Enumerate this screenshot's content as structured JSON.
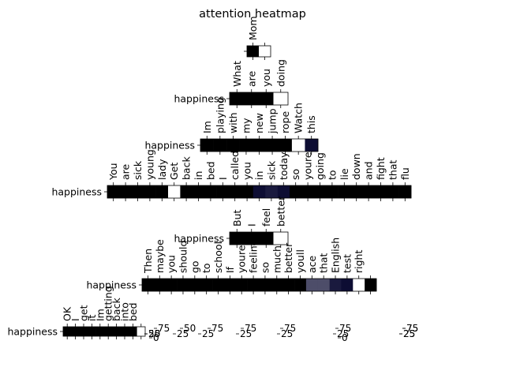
{
  "chart_data": {
    "type": "heatmap",
    "title": "attention heatmap",
    "colormap": {
      "low": "#000000",
      "high": "#ffffff"
    },
    "rows": [
      {
        "label": "",
        "tokens": [
          "Mom",
          ""
        ],
        "values": [
          0.0,
          1.0
        ]
      },
      {
        "label": "happiness",
        "tokens": [
          "What",
          "are",
          "you",
          "doing"
        ],
        "values": [
          0.0,
          0.0,
          0.0,
          1.0
        ]
      },
      {
        "label": "happiness",
        "tokens": [
          "Im",
          "playing",
          "with",
          "my",
          "new",
          "jump",
          "rope",
          "Watch",
          "this"
        ],
        "values": [
          0.0,
          0.0,
          0.0,
          0.0,
          0.0,
          0.0,
          0.0,
          1.0,
          0.05
        ]
      },
      {
        "label": "happiness",
        "tokens": [
          "You",
          "are",
          "sick",
          "young",
          "lady",
          "Get",
          "back",
          "in",
          "bed",
          "I",
          "called",
          "you",
          "in",
          "sick",
          "today",
          "so",
          "youre",
          "going",
          "to",
          "lie",
          "down",
          "and",
          "fight",
          "that",
          "flu"
        ],
        "values": [
          0.0,
          0.0,
          0.0,
          0.0,
          0.0,
          1.0,
          0.0,
          0.0,
          0.0,
          0.0,
          0.0,
          0.0,
          0.05,
          0.1,
          0.05,
          0.0,
          0.0,
          0.0,
          0.0,
          0.0,
          0.0,
          0.0,
          0.0,
          0.0,
          0.0
        ]
      },
      {
        "label": "happiness",
        "tokens": [
          "But",
          "I",
          "feel",
          "better"
        ],
        "values": [
          0.0,
          0.0,
          0.0,
          1.0
        ]
      },
      {
        "label": "happiness",
        "tokens": [
          "Then",
          "maybe",
          "you",
          "should",
          "go",
          "to",
          "school",
          "If",
          "youre",
          "feeling",
          "so",
          "much",
          "better",
          "youll",
          "ace",
          "that",
          "English",
          "test",
          "right",
          ""
        ],
        "values": [
          0.0,
          0.0,
          0.0,
          0.0,
          0.0,
          0.0,
          0.0,
          0.0,
          0.0,
          0.0,
          0.0,
          0.0,
          0.0,
          0.0,
          0.3,
          0.3,
          0.1,
          0.05,
          1.0,
          0.0
        ]
      },
      {
        "label": "happiness",
        "tokens": [
          "OK",
          "I",
          "get",
          "it",
          "Im",
          "getting",
          "back",
          "into",
          "bed",
          ""
        ],
        "values": [
          0.0,
          0.0,
          0.0,
          0.0,
          0.0,
          0.0,
          0.0,
          0.0,
          0.0,
          1.0
        ]
      }
    ],
    "colorbar_tick_clusters": [
      [
        "75",
        "50",
        "25",
        "0"
      ],
      [
        "50",
        "25"
      ],
      [
        "75",
        "25"
      ],
      [
        "75",
        "25"
      ],
      [
        "75",
        "25"
      ],
      [
        "75",
        "25",
        "0"
      ],
      [
        "75",
        "25"
      ],
      [
        "75",
        "25"
      ]
    ]
  }
}
